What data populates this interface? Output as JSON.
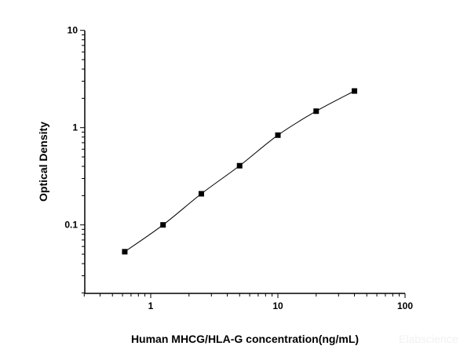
{
  "chart_data": {
    "type": "scatter",
    "title": "",
    "xlabel": "Human MHCG/HLA-G concentration(ng/mL)",
    "ylabel": "Optical Density",
    "xscale": "log",
    "yscale": "log",
    "xlim": [
      0.3,
      100
    ],
    "ylim": [
      0.02,
      10
    ],
    "x_ticks": [
      "1",
      "10",
      "100"
    ],
    "y_ticks": [
      "0.1",
      "1",
      "10"
    ],
    "grid": false,
    "legend": "none",
    "marker": "square",
    "fit_line": "smooth curve",
    "color": "#000000",
    "series": [
      {
        "x": [
          0.625,
          1.25,
          2.5,
          5,
          10,
          20,
          40
        ],
        "y": [
          0.053,
          0.1,
          0.209,
          0.406,
          0.837,
          1.476,
          2.38
        ]
      }
    ],
    "watermark": "Elabscience"
  }
}
